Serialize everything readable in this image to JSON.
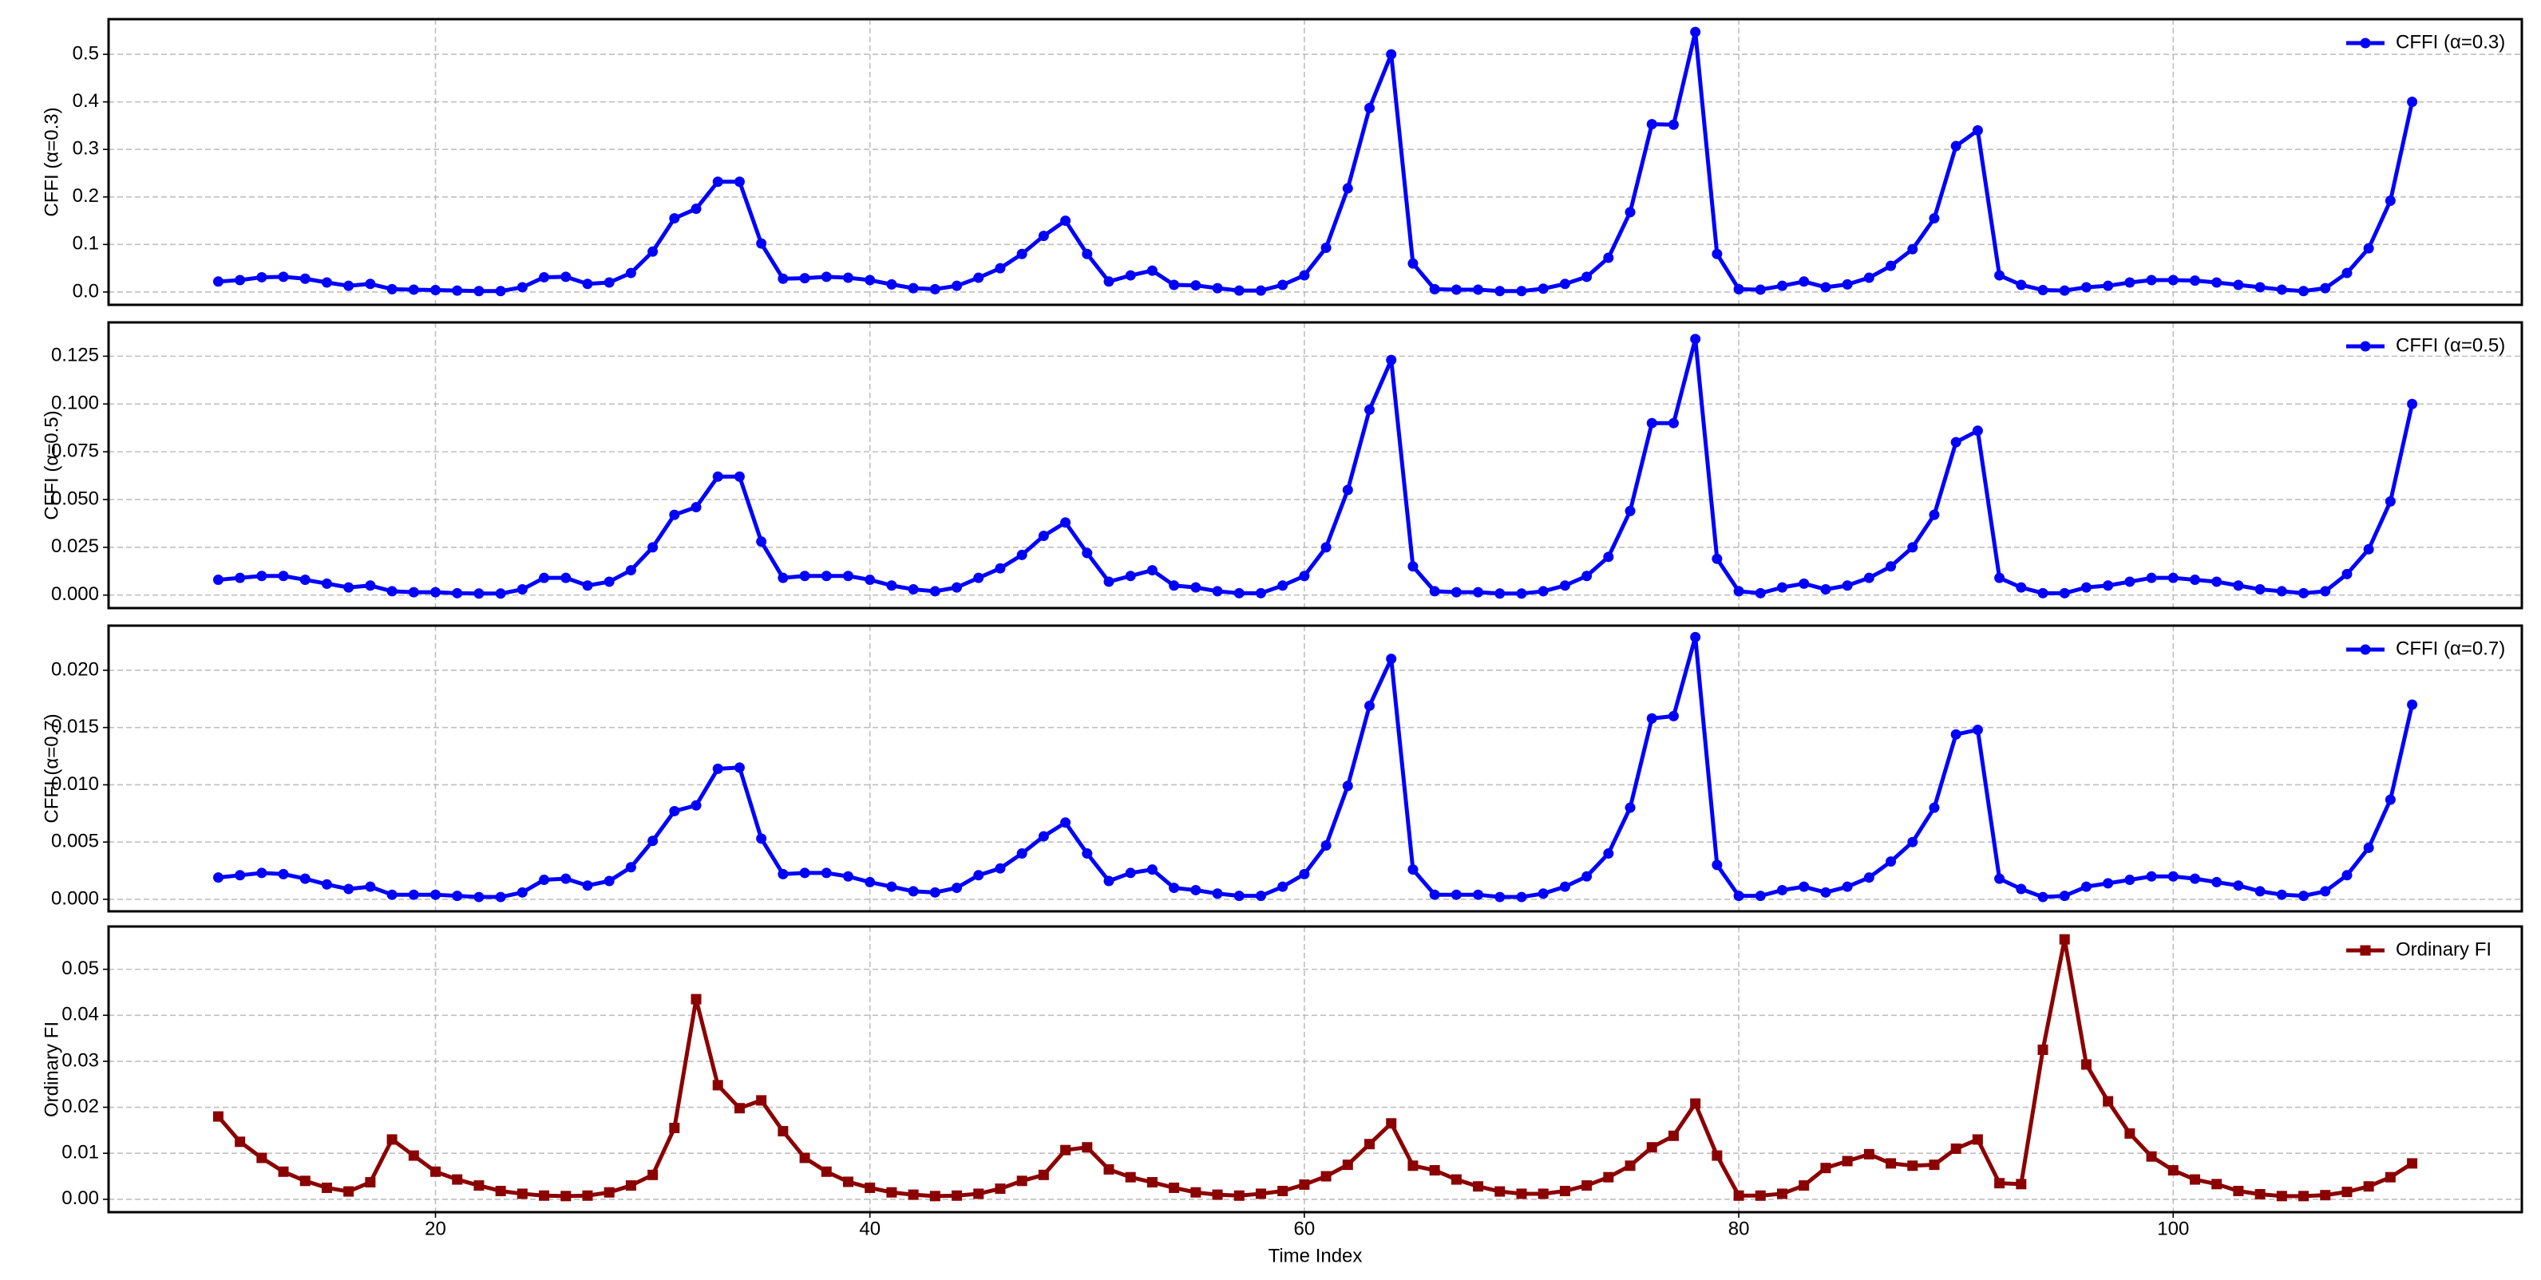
{
  "chart_data": [
    {
      "type": "line",
      "ylabel": "CFFI (α=0.3)",
      "x": [
        10,
        11,
        12,
        13,
        14,
        15,
        16,
        17,
        18,
        19,
        20,
        21,
        22,
        23,
        24,
        25,
        26,
        27,
        28,
        29,
        30,
        31,
        32,
        33,
        34,
        35,
        36,
        37,
        38,
        39,
        40,
        41,
        42,
        43,
        44,
        45,
        46,
        47,
        48,
        49,
        50,
        51,
        52,
        53,
        54,
        55,
        56,
        57,
        58,
        59,
        60,
        61,
        62,
        63,
        64,
        65,
        66,
        67,
        68,
        69,
        70,
        71,
        72,
        73,
        74,
        75,
        76,
        77,
        78,
        79,
        80,
        81,
        82,
        83,
        84,
        85,
        86,
        87,
        88,
        89,
        90,
        91,
        92,
        93,
        94,
        95,
        96,
        97,
        98,
        99,
        100,
        101,
        102,
        103,
        104,
        105,
        106,
        107,
        108,
        109,
        110,
        111
      ],
      "series": [
        {
          "name": "CFFI (α=0.3)",
          "color": "#0000ff",
          "marker": "circle",
          "values": [
            0.022,
            0.025,
            0.031,
            0.032,
            0.028,
            0.02,
            0.013,
            0.017,
            0.006,
            0.005,
            0.004,
            0.003,
            0.002,
            0.002,
            0.01,
            0.031,
            0.032,
            0.017,
            0.02,
            0.04,
            0.085,
            0.155,
            0.175,
            0.232,
            0.232,
            0.102,
            0.028,
            0.029,
            0.032,
            0.03,
            0.025,
            0.016,
            0.008,
            0.006,
            0.013,
            0.03,
            0.05,
            0.08,
            0.118,
            0.15,
            0.08,
            0.022,
            0.035,
            0.045,
            0.015,
            0.014,
            0.008,
            0.003,
            0.003,
            0.015,
            0.035,
            0.093,
            0.218,
            0.387,
            0.5,
            0.06,
            0.006,
            0.005,
            0.005,
            0.002,
            0.002,
            0.007,
            0.017,
            0.032,
            0.072,
            0.168,
            0.353,
            0.352,
            0.547,
            0.08,
            0.006,
            0.005,
            0.013,
            0.022,
            0.01,
            0.016,
            0.03,
            0.055,
            0.09,
            0.155,
            0.307,
            0.34,
            0.035,
            0.015,
            0.004,
            0.003,
            0.01,
            0.013,
            0.02,
            0.025,
            0.025,
            0.024,
            0.02,
            0.015,
            0.01,
            0.005,
            0.002,
            0.008,
            0.04,
            0.092,
            0.192,
            0.4
          ]
        }
      ],
      "xlim": [
        4.95,
        116.05
      ],
      "xticks": [
        20,
        40,
        60,
        80,
        100
      ],
      "ylim": [
        -0.027,
        0.574
      ],
      "yticks": [
        {
          "value": 0,
          "label": "0.0"
        },
        0.1,
        0.2,
        0.3,
        0.4,
        0.5
      ],
      "grid": true,
      "legend": "upper right"
    },
    {
      "type": "line",
      "ylabel": "CFFI (α=0.5)",
      "x": [
        10,
        11,
        12,
        13,
        14,
        15,
        16,
        17,
        18,
        19,
        20,
        21,
        22,
        23,
        24,
        25,
        26,
        27,
        28,
        29,
        30,
        31,
        32,
        33,
        34,
        35,
        36,
        37,
        38,
        39,
        40,
        41,
        42,
        43,
        44,
        45,
        46,
        47,
        48,
        49,
        50,
        51,
        52,
        53,
        54,
        55,
        56,
        57,
        58,
        59,
        60,
        61,
        62,
        63,
        64,
        65,
        66,
        67,
        68,
        69,
        70,
        71,
        72,
        73,
        74,
        75,
        76,
        77,
        78,
        79,
        80,
        81,
        82,
        83,
        84,
        85,
        86,
        87,
        88,
        89,
        90,
        91,
        92,
        93,
        94,
        95,
        96,
        97,
        98,
        99,
        100,
        101,
        102,
        103,
        104,
        105,
        106,
        107,
        108,
        109,
        110,
        111
      ],
      "series": [
        {
          "name": "CFFI (α=0.5)",
          "color": "#0000ff",
          "marker": "circle",
          "values": [
            0.008,
            0.009,
            0.01,
            0.01,
            0.008,
            0.006,
            0.004,
            0.005,
            0.002,
            0.0015,
            0.0015,
            0.001,
            0.0008,
            0.0008,
            0.003,
            0.009,
            0.009,
            0.005,
            0.007,
            0.013,
            0.025,
            0.042,
            0.046,
            0.062,
            0.062,
            0.028,
            0.009,
            0.01,
            0.01,
            0.01,
            0.008,
            0.005,
            0.003,
            0.002,
            0.004,
            0.009,
            0.014,
            0.021,
            0.031,
            0.038,
            0.022,
            0.007,
            0.01,
            0.013,
            0.005,
            0.004,
            0.002,
            0.001,
            0.001,
            0.005,
            0.01,
            0.025,
            0.055,
            0.097,
            0.123,
            0.015,
            0.002,
            0.0015,
            0.0015,
            0.0008,
            0.0008,
            0.002,
            0.005,
            0.01,
            0.02,
            0.044,
            0.09,
            0.09,
            0.134,
            0.019,
            0.002,
            0.001,
            0.004,
            0.006,
            0.003,
            0.005,
            0.009,
            0.015,
            0.025,
            0.042,
            0.08,
            0.086,
            0.009,
            0.004,
            0.001,
            0.001,
            0.004,
            0.005,
            0.007,
            0.009,
            0.009,
            0.008,
            0.007,
            0.005,
            0.003,
            0.002,
            0.001,
            0.002,
            0.011,
            0.024,
            0.049,
            0.1
          ]
        }
      ],
      "xlim": [
        4.95,
        116.05
      ],
      "xticks": [
        20,
        40,
        60,
        80,
        100
      ],
      "ylim": [
        -0.0068,
        0.1427
      ],
      "yticks": [
        {
          "value": 0,
          "label": "0.000"
        },
        0.025,
        {
          "value": 0.05,
          "label": "0.050"
        },
        0.075,
        {
          "value": 0.1,
          "label": "0.100"
        },
        0.125
      ],
      "grid": true,
      "legend": "upper right"
    },
    {
      "type": "line",
      "ylabel": "CFFI (α=0.7)",
      "x": [
        10,
        11,
        12,
        13,
        14,
        15,
        16,
        17,
        18,
        19,
        20,
        21,
        22,
        23,
        24,
        25,
        26,
        27,
        28,
        29,
        30,
        31,
        32,
        33,
        34,
        35,
        36,
        37,
        38,
        39,
        40,
        41,
        42,
        43,
        44,
        45,
        46,
        47,
        48,
        49,
        50,
        51,
        52,
        53,
        54,
        55,
        56,
        57,
        58,
        59,
        60,
        61,
        62,
        63,
        64,
        65,
        66,
        67,
        68,
        69,
        70,
        71,
        72,
        73,
        74,
        75,
        76,
        77,
        78,
        79,
        80,
        81,
        82,
        83,
        84,
        85,
        86,
        87,
        88,
        89,
        90,
        91,
        92,
        93,
        94,
        95,
        96,
        97,
        98,
        99,
        100,
        101,
        102,
        103,
        104,
        105,
        106,
        107,
        108,
        109,
        110,
        111
      ],
      "series": [
        {
          "name": "CFFI (α=0.7)",
          "color": "#0000ff",
          "marker": "circle",
          "values": [
            0.0019,
            0.0021,
            0.0023,
            0.0022,
            0.0018,
            0.0013,
            0.0009,
            0.0011,
            0.0004,
            0.0004,
            0.0004,
            0.0003,
            0.0002,
            0.0002,
            0.0006,
            0.0017,
            0.0018,
            0.0012,
            0.0016,
            0.0028,
            0.0051,
            0.0077,
            0.0082,
            0.0114,
            0.0115,
            0.0053,
            0.0022,
            0.0023,
            0.0023,
            0.002,
            0.0015,
            0.0011,
            0.0007,
            0.0006,
            0.001,
            0.0021,
            0.0027,
            0.004,
            0.0055,
            0.0067,
            0.004,
            0.0016,
            0.0023,
            0.0026,
            0.001,
            0.0008,
            0.0005,
            0.0003,
            0.0003,
            0.0011,
            0.0022,
            0.0047,
            0.0099,
            0.0169,
            0.021,
            0.0026,
            0.0004,
            0.0004,
            0.0004,
            0.0002,
            0.0002,
            0.0005,
            0.0011,
            0.002,
            0.004,
            0.008,
            0.0158,
            0.016,
            0.0229,
            0.003,
            0.0003,
            0.0003,
            0.0008,
            0.0011,
            0.0006,
            0.0011,
            0.0019,
            0.0033,
            0.005,
            0.008,
            0.0144,
            0.0148,
            0.0018,
            0.0009,
            0.0002,
            0.0003,
            0.0011,
            0.0014,
            0.0017,
            0.002,
            0.002,
            0.0018,
            0.0015,
            0.0012,
            0.0007,
            0.0004,
            0.0003,
            0.0007,
            0.0021,
            0.0045,
            0.0087,
            0.017
          ]
        }
      ],
      "xlim": [
        4.95,
        116.05
      ],
      "xticks": [
        20,
        40,
        60,
        80,
        100
      ],
      "ylim": [
        -0.00105,
        0.0239
      ],
      "yticks": [
        {
          "value": 0,
          "label": "0.000"
        },
        0.005,
        {
          "value": 0.01,
          "label": "0.010"
        },
        0.015,
        {
          "value": 0.02,
          "label": "0.020"
        }
      ],
      "grid": true,
      "legend": "upper right"
    },
    {
      "type": "line",
      "ylabel": "Ordinary FI",
      "xlabel": "Time Index",
      "x": [
        10,
        11,
        12,
        13,
        14,
        15,
        16,
        17,
        18,
        19,
        20,
        21,
        22,
        23,
        24,
        25,
        26,
        27,
        28,
        29,
        30,
        31,
        32,
        33,
        34,
        35,
        36,
        37,
        38,
        39,
        40,
        41,
        42,
        43,
        44,
        45,
        46,
        47,
        48,
        49,
        50,
        51,
        52,
        53,
        54,
        55,
        56,
        57,
        58,
        59,
        60,
        61,
        62,
        63,
        64,
        65,
        66,
        67,
        68,
        69,
        70,
        71,
        72,
        73,
        74,
        75,
        76,
        77,
        78,
        79,
        80,
        81,
        82,
        83,
        84,
        85,
        86,
        87,
        88,
        89,
        90,
        91,
        92,
        93,
        94,
        95,
        96,
        97,
        98,
        99,
        100,
        101,
        102,
        103,
        104,
        105,
        106,
        107,
        108,
        109,
        110,
        111
      ],
      "series": [
        {
          "name": "Ordinary FI",
          "color": "#8b0000",
          "marker": "square",
          "values": [
            0.018,
            0.0125,
            0.009,
            0.006,
            0.004,
            0.0025,
            0.0017,
            0.0037,
            0.013,
            0.0095,
            0.006,
            0.0043,
            0.003,
            0.0018,
            0.0012,
            0.0008,
            0.0007,
            0.0008,
            0.0015,
            0.003,
            0.0053,
            0.0155,
            0.0435,
            0.0248,
            0.0198,
            0.0215,
            0.0148,
            0.009,
            0.006,
            0.0038,
            0.0025,
            0.0015,
            0.001,
            0.0007,
            0.0008,
            0.0012,
            0.0023,
            0.004,
            0.0053,
            0.0107,
            0.0113,
            0.0065,
            0.0048,
            0.0037,
            0.0025,
            0.0015,
            0.001,
            0.0008,
            0.0012,
            0.0018,
            0.0032,
            0.005,
            0.0075,
            0.012,
            0.0165,
            0.0073,
            0.0063,
            0.0043,
            0.0028,
            0.0017,
            0.0012,
            0.0012,
            0.0018,
            0.003,
            0.0048,
            0.0073,
            0.0113,
            0.0138,
            0.0208,
            0.0095,
            0.0008,
            0.0008,
            0.0012,
            0.003,
            0.0068,
            0.0083,
            0.0098,
            0.0078,
            0.0073,
            0.0075,
            0.011,
            0.013,
            0.0035,
            0.0033,
            0.0325,
            0.0565,
            0.0293,
            0.0213,
            0.0143,
            0.0093,
            0.0063,
            0.0043,
            0.0033,
            0.0018,
            0.0011,
            0.0007,
            0.0007,
            0.0009,
            0.0016,
            0.0028,
            0.0048,
            0.0078
          ]
        }
      ],
      "xlim": [
        4.95,
        116.05
      ],
      "xticks": [
        20,
        40,
        60,
        80,
        100
      ],
      "ylim": [
        -0.0028,
        0.0593
      ],
      "yticks": [
        {
          "value": 0,
          "label": "0.00"
        },
        {
          "value": 0.01,
          "label": "0.01"
        },
        {
          "value": 0.02,
          "label": "0.02"
        },
        {
          "value": 0.03,
          "label": "0.03"
        },
        {
          "value": 0.04,
          "label": "0.04"
        },
        {
          "value": 0.05,
          "label": "0.05"
        }
      ],
      "grid": true,
      "legend": "upper right"
    }
  ]
}
